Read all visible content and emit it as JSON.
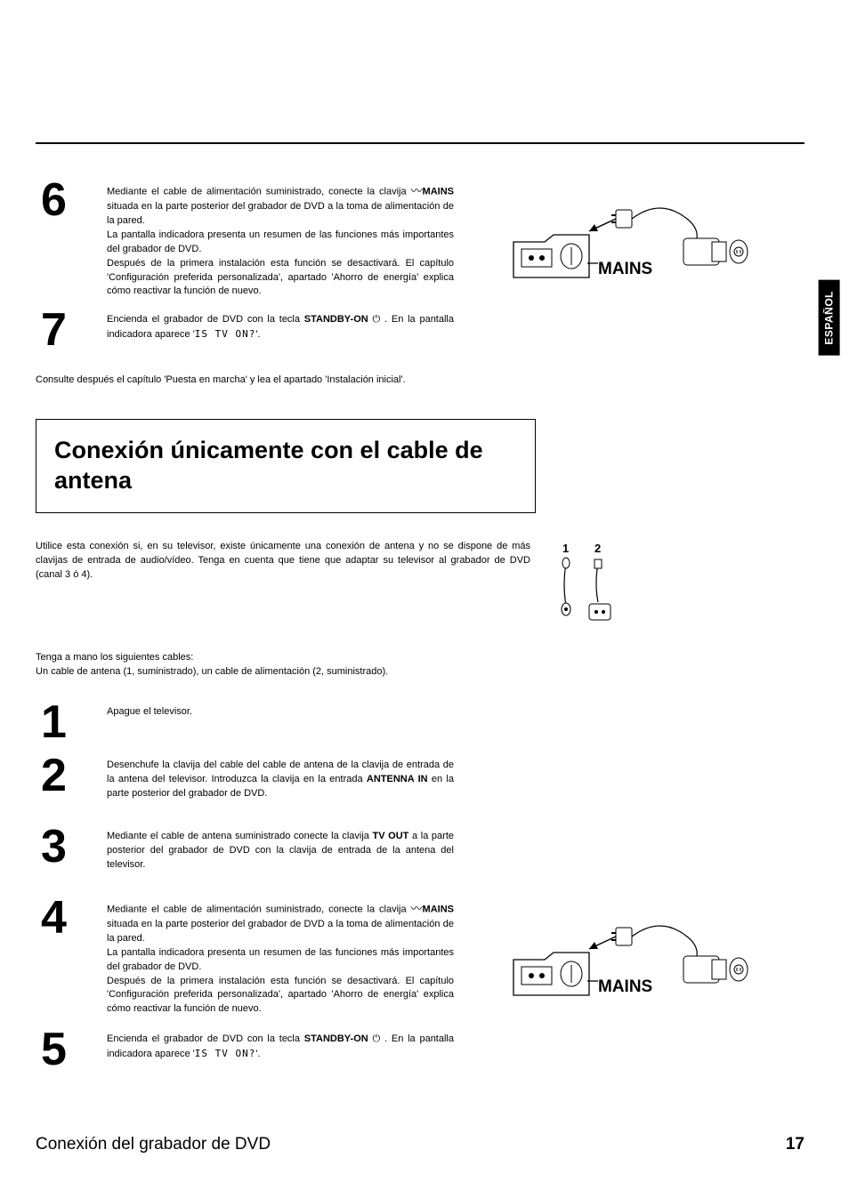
{
  "language_tab": "ESPAÑOL",
  "page_number": "17",
  "footer_title": "Conexión del grabador de DVD",
  "topline_color": "#000000",
  "section_title": "Conexión únicamente con el cable de antena",
  "note_after_67": "Consulte después el capítulo 'Puesta en marcha' y lea el apartado 'Instalación inicial'.",
  "intro_paragraph": "Utilice esta conexión si, en su televisor, existe únicamente una conexión de antena y no se dispone de más clavijas de entrada de audio/vídeo. Tenga en cuenta que tiene que adaptar su televisor al grabador de DVD (canal 3 ó 4).",
  "cables_intro_1": "Tenga a mano los siguientes cables:",
  "cables_intro_2": "Un cable de antena (1, suministrado), un cable de alimentación (2, suministrado).",
  "mains_label": "MAINS",
  "cable_labels": {
    "one": "1",
    "two": "2"
  },
  "steps_top": [
    {
      "num": "6",
      "lines": [
        {
          "t": "Mediante el cable de alimentación suministrado, conecte la clavija "
        },
        {
          "wave": true
        },
        {
          "b": "MAINS"
        },
        {
          "t": " situada en la parte posterior del grabador de DVD a la toma de alimentación de la pared."
        },
        {
          "br": true
        },
        {
          "t": "La pantalla indicadora presenta un resumen de las funciones más importantes del grabador de DVD."
        },
        {
          "br": true
        },
        {
          "t": "Después de la primera instalación esta función se desactivará. El capítulo 'Configuración preferida personalizada', apartado 'Ahorro de energía' explica cómo reactivar la función de nuevo."
        }
      ]
    },
    {
      "num": "7",
      "lines": [
        {
          "t": "Encienda el grabador de DVD con la tecla  "
        },
        {
          "b": "STANDBY-ON"
        },
        {
          "pwr": true
        },
        {
          "t": " . En la pantalla indicadora aparece '"
        },
        {
          "lcd": "IS TV ON?"
        },
        {
          "t": "'."
        }
      ]
    }
  ],
  "steps_bottom": [
    {
      "num": "1",
      "lines": [
        {
          "t": "Apague el televisor."
        }
      ]
    },
    {
      "num": "2",
      "lines": [
        {
          "t": "Desenchufe la clavija del cable del cable de antena de la clavija de entrada de la antena del televisor. Introduzca la clavija en la entrada  "
        },
        {
          "b": "ANTENNA IN"
        },
        {
          "t": " en la parte posterior del grabador de DVD."
        }
      ]
    },
    {
      "num": "3",
      "lines": [
        {
          "t": "Mediante el cable de antena suministrado conecte la clavija  "
        },
        {
          "b": "TV OUT"
        },
        {
          "t": " a la parte posterior del grabador de DVD con la clavija de entrada de la antena del televisor."
        }
      ]
    },
    {
      "num": "4",
      "lines": [
        {
          "t": "Mediante el cable de alimentación suministrado, conecte la clavija "
        },
        {
          "wave": true
        },
        {
          "b": "MAINS"
        },
        {
          "t": " situada en la parte posterior del grabador de DVD a la toma de alimentación de la pared."
        },
        {
          "br": true
        },
        {
          "t": "La pantalla indicadora presenta un resumen de las funciones más importantes del grabador de DVD."
        },
        {
          "br": true
        },
        {
          "t": "Después de la primera instalación esta función se desactivará. El capítulo 'Configuración preferida personalizada', apartado 'Ahorro de energía' explica cómo reactivar la función de nuevo."
        }
      ]
    },
    {
      "num": "5",
      "lines": [
        {
          "t": "Encienda el grabador de DVD con la tecla  "
        },
        {
          "b": "STANDBY-ON"
        },
        {
          "pwr": true
        },
        {
          "t": " . En la pantalla indicadora aparece '"
        },
        {
          "lcd": "IS TV ON?"
        },
        {
          "t": "'."
        }
      ]
    }
  ],
  "illustration": {
    "stroke": "#000000",
    "fill": "#ffffff"
  }
}
